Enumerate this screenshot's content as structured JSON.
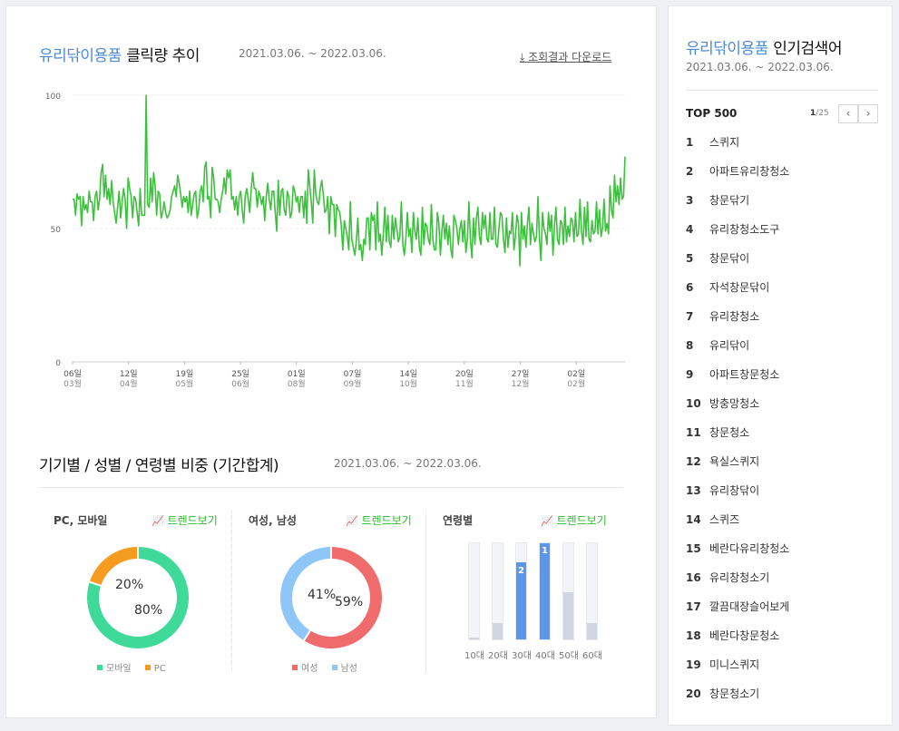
{
  "main": {
    "trend": {
      "keyword": "유리닦이용품",
      "title_rest": "클릭량 추이",
      "date_range": "2021.03.06. ~ 2022.03.06.",
      "download_label": "조회결과 다운로드"
    },
    "breakdown": {
      "title": "기기별 / 성별 / 연령별 비중 (기간합계)",
      "date_range": "2021.03.06. ~ 2022.03.06.",
      "trend_link_label": "트렌드보기",
      "device": {
        "title": "PC, 모바일",
        "mobile_pct": "80%",
        "pc_pct": "20%",
        "legend_mobile": "모바일",
        "legend_pc": "PC"
      },
      "gender": {
        "title": "여성, 남성",
        "female_pct": "59%",
        "male_pct": "41%",
        "legend_female": "여성",
        "legend_male": "남성"
      },
      "age": {
        "title": "연령별"
      }
    }
  },
  "colors": {
    "line": "#3cc13c",
    "keyword": "#4a8ad8",
    "mobile": "#3fd99a",
    "pc": "#f59b1f",
    "female": "#f06b6b",
    "male": "#8ec6f7",
    "age_highlight": "#5b97e8",
    "age_normal": "#cfd5e1"
  },
  "chart_data": [
    {
      "type": "line",
      "title": "유리닦이용품 클릭량 추이",
      "ylim": [
        0,
        100
      ],
      "yticks": [
        "100",
        "50",
        "0"
      ],
      "xlabels": [
        {
          "day": "06일",
          "month": "03월"
        },
        {
          "day": "12일",
          "month": "04월"
        },
        {
          "day": "19일",
          "month": "05월"
        },
        {
          "day": "25일",
          "month": "06월"
        },
        {
          "day": "01일",
          "month": "08월"
        },
        {
          "day": "07일",
          "month": "09월"
        },
        {
          "day": "14일",
          "month": "10월"
        },
        {
          "day": "20일",
          "month": "11월"
        },
        {
          "day": "27일",
          "month": "12월"
        },
        {
          "day": "02일",
          "month": "02월"
        }
      ],
      "grid": true,
      "series": [
        {
          "values": [
            61,
            61,
            55,
            63,
            61,
            62,
            51,
            62,
            57,
            59,
            56,
            64,
            60,
            60,
            53,
            62,
            64,
            57,
            61,
            71,
            74,
            62,
            70,
            61,
            65,
            59,
            68,
            60,
            56,
            52,
            58,
            64,
            54,
            60,
            65,
            61,
            50,
            69,
            65,
            62,
            54,
            62,
            61,
            56,
            51,
            65,
            55,
            55,
            55,
            100,
            59,
            58,
            69,
            60,
            71,
            66,
            55,
            64,
            63,
            54,
            56,
            60,
            56,
            54,
            55,
            57,
            62,
            64,
            66,
            62,
            70,
            67,
            63,
            58,
            62,
            60,
            62,
            56,
            64,
            55,
            59,
            63,
            64,
            54,
            57,
            64,
            66,
            60,
            73,
            75,
            61,
            62,
            54,
            73,
            69,
            61,
            61,
            60,
            56,
            61,
            64,
            69,
            63,
            72,
            69,
            72,
            61,
            62,
            57,
            62,
            55,
            62,
            64,
            57,
            52,
            62,
            65,
            61,
            56,
            65,
            71,
            65,
            65,
            58,
            64,
            62,
            59,
            62,
            53,
            62,
            67,
            61,
            57,
            64,
            64,
            56,
            49,
            68,
            55,
            64,
            65,
            57,
            55,
            64,
            62,
            54,
            56,
            66,
            64,
            60,
            62,
            56,
            62,
            62,
            54,
            64,
            52,
            72,
            66,
            60,
            52,
            72,
            63,
            60,
            59,
            65,
            68,
            63,
            56,
            57,
            62,
            48,
            62,
            59,
            59,
            47,
            59,
            57,
            56,
            51,
            42,
            53,
            50,
            47,
            42,
            60,
            46,
            43,
            40,
            45,
            54,
            42,
            44,
            38,
            46,
            44,
            54,
            54,
            42,
            56,
            53,
            55,
            42,
            60,
            45,
            48,
            40,
            48,
            58,
            45,
            55,
            45,
            43,
            55,
            46,
            54,
            50,
            45,
            47,
            60,
            44,
            40,
            46,
            56,
            47,
            50,
            41,
            56,
            49,
            46,
            54,
            43,
            40,
            58,
            44,
            52,
            51,
            46,
            44,
            59,
            46,
            42,
            42,
            56,
            52,
            40,
            49,
            55,
            46,
            52,
            44,
            51,
            42,
            39,
            55,
            53,
            50,
            44,
            50,
            53,
            45,
            53,
            41,
            46,
            60,
            46,
            39,
            54,
            44,
            54,
            58,
            47,
            44,
            56,
            50,
            55,
            46,
            45,
            56,
            46,
            46,
            58,
            44,
            43,
            50,
            56,
            55,
            46,
            41,
            54,
            43,
            49,
            48,
            56,
            42,
            47,
            55,
            52,
            36,
            56,
            46,
            51,
            43,
            52,
            58,
            44,
            52,
            48,
            45,
            47,
            62,
            46,
            38,
            56,
            50,
            48,
            44,
            56,
            49,
            55,
            40,
            51,
            58,
            46,
            44,
            53,
            52,
            44,
            58,
            45,
            51,
            47,
            54,
            53,
            45,
            56,
            47,
            48,
            61,
            49,
            44,
            58,
            47,
            60,
            46,
            45,
            53,
            48,
            49,
            60,
            48,
            57,
            47,
            50,
            61,
            49,
            52,
            48,
            66,
            57,
            54,
            70,
            60,
            66,
            59,
            69,
            61,
            62,
            77
          ]
        }
      ]
    },
    {
      "type": "pie",
      "title": "PC, 모바일",
      "labels": [
        "모바일",
        "PC"
      ],
      "values": [
        80,
        20
      ]
    },
    {
      "type": "pie",
      "title": "여성, 남성",
      "labels": [
        "여성",
        "남성"
      ],
      "values": [
        59,
        41
      ]
    },
    {
      "type": "bar",
      "title": "연령별",
      "categories": [
        "10대",
        "20대",
        "30대",
        "40대",
        "50대",
        "60대"
      ],
      "values": [
        2,
        17,
        80,
        100,
        49,
        17
      ],
      "ranks": [
        "",
        "",
        "2",
        "1",
        "",
        ""
      ],
      "ylim": [
        0,
        100
      ]
    }
  ],
  "sidebar": {
    "keyword": "유리닦이용품",
    "title_rest": "인기검색어",
    "date_range": "2021.03.06. ~ 2022.03.06.",
    "top_label": "TOP 500",
    "page_current": "1",
    "page_total": "/25",
    "items": [
      {
        "rank": "1",
        "keyword": "스퀴지"
      },
      {
        "rank": "2",
        "keyword": "아파트유리창청소"
      },
      {
        "rank": "3",
        "keyword": "창문닦기"
      },
      {
        "rank": "4",
        "keyword": "유리창청소도구"
      },
      {
        "rank": "5",
        "keyword": "창문닦이"
      },
      {
        "rank": "6",
        "keyword": "자석창문닦이"
      },
      {
        "rank": "7",
        "keyword": "유리창청소"
      },
      {
        "rank": "8",
        "keyword": "유리닦이"
      },
      {
        "rank": "9",
        "keyword": "아파트창문청소"
      },
      {
        "rank": "10",
        "keyword": "방충망청소"
      },
      {
        "rank": "11",
        "keyword": "창문청소"
      },
      {
        "rank": "12",
        "keyword": "욕실스퀴지"
      },
      {
        "rank": "13",
        "keyword": "유리창닦이"
      },
      {
        "rank": "14",
        "keyword": "스퀴즈"
      },
      {
        "rank": "15",
        "keyword": "베란다유리창청소"
      },
      {
        "rank": "16",
        "keyword": "유리창청소기"
      },
      {
        "rank": "17",
        "keyword": "깔끔대장슬어보게"
      },
      {
        "rank": "18",
        "keyword": "베란다창문청소"
      },
      {
        "rank": "19",
        "keyword": "미니스퀴지"
      },
      {
        "rank": "20",
        "keyword": "창문청소기"
      }
    ]
  }
}
